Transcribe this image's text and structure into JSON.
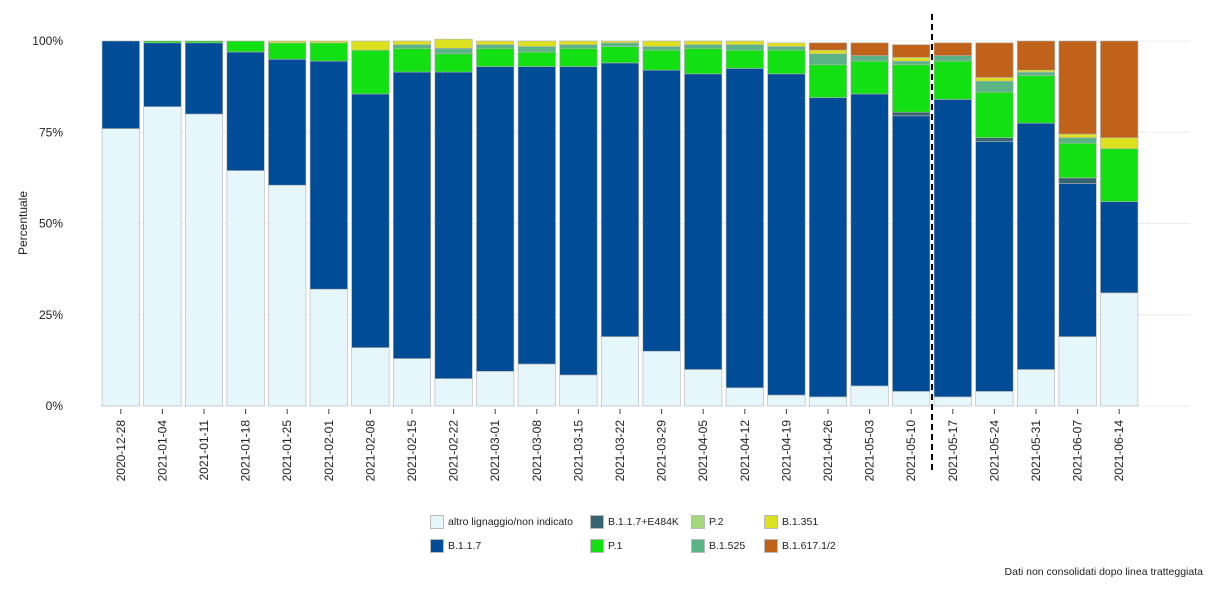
{
  "chart_data": {
    "type": "bar",
    "stacked": true,
    "ylabel": "Percentuale",
    "yticks": [
      "0%",
      "25%",
      "50%",
      "75%",
      "100%"
    ],
    "ylim": [
      0,
      100
    ],
    "grid": true,
    "legend_position": "bottom",
    "cutoff_after_category": "2021-05-10",
    "categories": [
      "2020-12-28",
      "2021-01-04",
      "2021-01-11",
      "2021-01-18",
      "2021-01-25",
      "2021-02-01",
      "2021-02-08",
      "2021-02-15",
      "2021-02-22",
      "2021-03-01",
      "2021-03-08",
      "2021-03-15",
      "2021-03-22",
      "2021-03-29",
      "2021-04-05",
      "2021-04-12",
      "2021-04-19",
      "2021-04-26",
      "2021-05-03",
      "2021-05-10",
      "2021-05-17",
      "2021-05-24",
      "2021-05-31",
      "2021-06-07",
      "2021-06-14"
    ],
    "series": [
      {
        "name": "altro lignaggio/non indicato",
        "color": "#e6f7fc",
        "values": [
          76,
          82,
          80,
          64.5,
          60.5,
          32,
          16,
          13,
          7.5,
          9.5,
          11.5,
          8.5,
          19,
          15,
          10,
          5,
          3,
          2.5,
          5.5,
          4,
          2.5,
          4,
          10,
          19,
          31
        ]
      },
      {
        "name": "B.1.1.7",
        "color": "#004c96",
        "values": [
          24,
          17.5,
          19.5,
          32.5,
          34.5,
          62.5,
          69.5,
          78.5,
          84,
          83.5,
          81.5,
          84.5,
          75,
          77,
          81,
          87.5,
          88,
          82,
          80,
          75.5,
          81.5,
          68.5,
          67.5,
          42,
          25
        ]
      },
      {
        "name": "B.1.1.7+E484K",
        "color": "#36646e",
        "values": [
          0,
          0,
          0,
          0,
          0,
          0,
          0,
          0,
          0,
          0,
          0,
          0,
          0,
          0,
          0,
          0,
          0,
          0,
          0,
          1,
          0,
          1,
          0,
          1.5,
          0
        ]
      },
      {
        "name": "P.1",
        "color": "#13e013",
        "values": [
          0,
          0.5,
          0.5,
          3,
          4.5,
          5,
          12,
          6.5,
          5,
          5,
          4,
          5,
          4.5,
          5.5,
          7,
          5,
          6.5,
          9,
          9,
          13,
          10.5,
          12.5,
          13,
          9.5,
          14.5
        ]
      },
      {
        "name": "P.2",
        "color": "#a4d87a",
        "values": [
          0,
          0,
          0,
          0,
          0,
          0,
          0,
          0,
          0,
          0,
          0,
          0,
          0,
          0,
          0,
          0,
          0,
          0,
          0,
          0,
          0,
          0,
          0,
          0,
          0
        ]
      },
      {
        "name": "B.1.525",
        "color": "#5ab486",
        "values": [
          0,
          0,
          0,
          0,
          0,
          0,
          0,
          1,
          1.5,
          1,
          1.5,
          1,
          1,
          1,
          1,
          1.5,
          1,
          3,
          1.5,
          1,
          1.5,
          3,
          1,
          1.5,
          0
        ]
      },
      {
        "name": "B.1.351",
        "color": "#dbe01f",
        "values": [
          0,
          0,
          0,
          0,
          0.5,
          0.5,
          2.5,
          1,
          2.5,
          1,
          1.5,
          1,
          0.5,
          1.5,
          1,
          1,
          1,
          1,
          0,
          1,
          0,
          1,
          0.5,
          1,
          3
        ]
      },
      {
        "name": "B.1.617.1/2",
        "color": "#c0621a",
        "values": [
          0,
          0,
          0,
          0,
          0,
          0,
          0,
          0,
          0,
          0,
          0,
          0,
          0,
          0,
          0,
          0,
          0,
          2,
          3.5,
          3.5,
          3.5,
          9.5,
          8,
          25.5,
          26.5
        ]
      }
    ],
    "legend_order": [
      "altro lignaggio/non indicato",
      "B.1.1.7",
      "B.1.1.7+E484K",
      "P.1",
      "P.2",
      "B.1.525",
      "B.1.351",
      "B.1.617.1/2"
    ],
    "annotation": "Dati non consolidati dopo linea tratteggiata"
  }
}
